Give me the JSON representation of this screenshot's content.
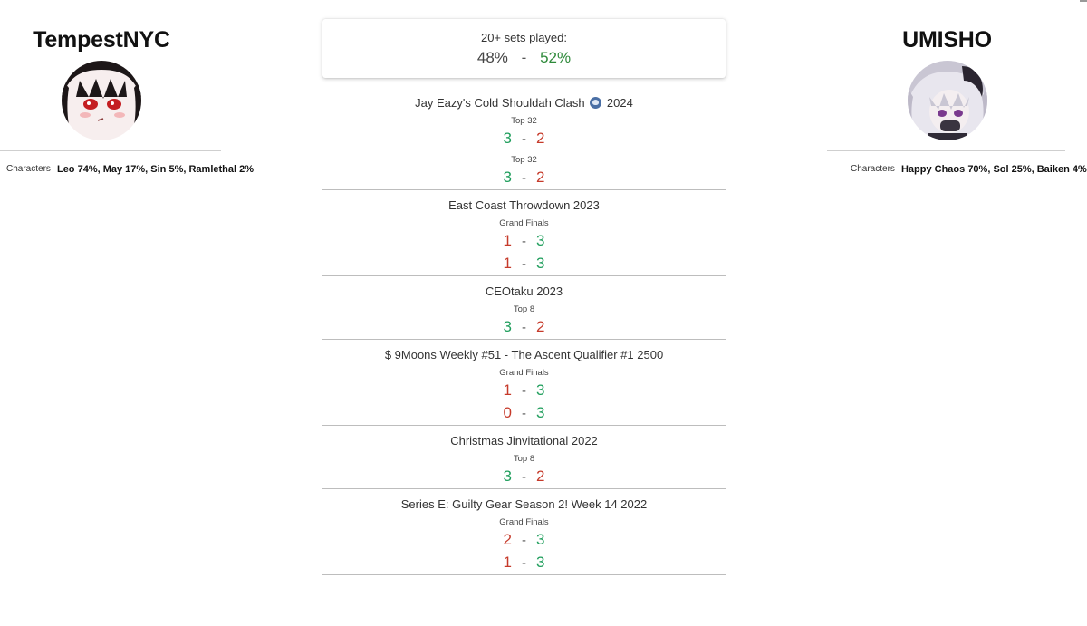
{
  "left_player": {
    "name": "TempestNYC",
    "avatar_icon": "anime-girl-avatar-icon",
    "characters_label": "Characters",
    "characters": "Leo 74%, May 17%, Sin 5%, Ramlethal 2%"
  },
  "right_player": {
    "name": "UMISHO",
    "avatar_icon": "anime-girl-avatar-icon",
    "characters_label": "Characters",
    "characters": "Happy Chaos 70%, Sol 25%, Baiken 4%"
  },
  "summary": {
    "label": "20+ sets played:",
    "left_pct": "48%",
    "separator": "-",
    "right_pct": "52%"
  },
  "colors": {
    "win": "#1f9e5c",
    "loss": "#c63a2a",
    "summary_right": "#2e8a3a"
  },
  "tournaments": [
    {
      "name_before_icon": "Jay Eazy's Cold Shouldah Clash",
      "icon": "skull-emoji-icon",
      "name_after_icon": "2024",
      "sets": [
        {
          "round": "Top 32",
          "left": "3",
          "right": "2"
        },
        {
          "round": "Top 32",
          "left": "3",
          "right": "2"
        }
      ]
    },
    {
      "name": "East Coast Throwdown 2023",
      "round": "Grand Finals",
      "sets": [
        {
          "left": "1",
          "right": "3"
        },
        {
          "left": "1",
          "right": "3"
        }
      ]
    },
    {
      "name": "CEOtaku 2023",
      "round": "Top 8",
      "sets": [
        {
          "left": "3",
          "right": "2"
        }
      ]
    },
    {
      "name": "$ 9Moons Weekly #51 - The Ascent Qualifier #1 2500",
      "round": "Grand Finals",
      "sets": [
        {
          "left": "1",
          "right": "3"
        },
        {
          "left": "0",
          "right": "3"
        }
      ]
    },
    {
      "name": "Christmas Jinvitational 2022",
      "round": "Top 8",
      "sets": [
        {
          "left": "3",
          "right": "2"
        }
      ]
    },
    {
      "name": "Series E: Guilty Gear Season 2! Week 14 2022",
      "round": "Grand Finals",
      "sets": [
        {
          "left": "2",
          "right": "3"
        },
        {
          "left": "1",
          "right": "3"
        }
      ]
    }
  ]
}
